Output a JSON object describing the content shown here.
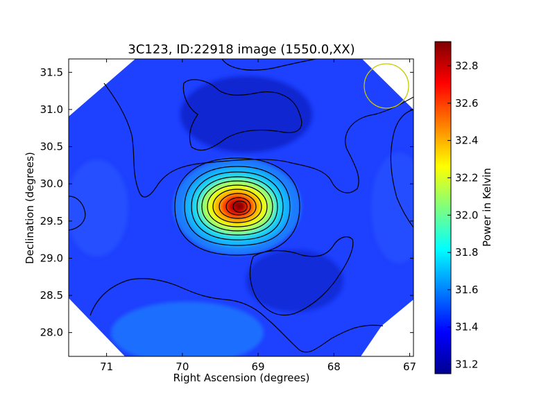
{
  "chart_data": {
    "type": "heatmap",
    "title": "3C123, ID:22918 image (1550.0,XX)",
    "xlabel": "Right Ascension (degrees)",
    "ylabel": "Declination (degrees)",
    "xlim": [
      71.5,
      66.95
    ],
    "ylim": [
      27.68,
      31.68
    ],
    "x_ticks": [
      71,
      70,
      69,
      68,
      67
    ],
    "x_tick_labels": [
      "71",
      "70",
      "69",
      "68",
      "67"
    ],
    "y_ticks": [
      28.0,
      28.5,
      29.0,
      29.5,
      30.0,
      30.5,
      31.0,
      31.5
    ],
    "y_tick_labels": [
      "28.0",
      "28.5",
      "29.0",
      "29.5",
      "30.0",
      "30.5",
      "31.0",
      "31.5"
    ],
    "colorbar": {
      "label": "Power in Kelvin",
      "range": [
        31.15,
        32.93
      ],
      "ticks": [
        31.2,
        31.4,
        31.6,
        31.8,
        32.0,
        32.2,
        32.4,
        32.6,
        32.8
      ],
      "tick_labels": [
        "31.2",
        "31.4",
        "31.6",
        "31.8",
        "32.0",
        "32.2",
        "32.4",
        "32.6",
        "32.8"
      ],
      "colormap": "jet"
    },
    "peak": {
      "ra": 69.3,
      "dec": 29.7,
      "value": 32.9
    },
    "background_level": 31.45,
    "beam_circle": {
      "ra": 67.35,
      "dec": 31.3,
      "color": "#c8c800"
    },
    "contour_color": "#000000",
    "grid": false
  }
}
